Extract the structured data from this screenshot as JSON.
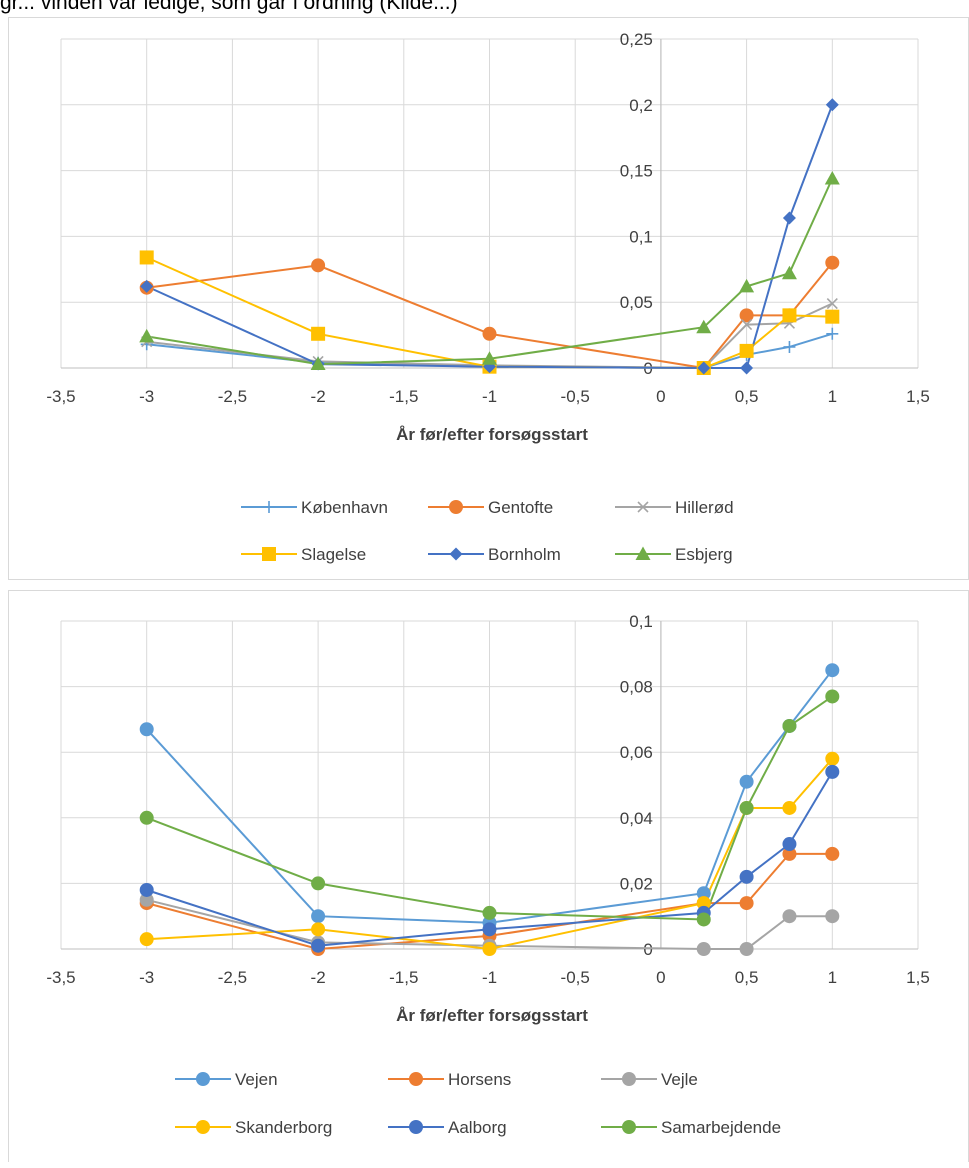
{
  "header": {
    "text": "gr... vinden var ledige, som går i ordning (Kilde...)"
  },
  "chart_data": [
    {
      "type": "line",
      "xlabel": "År før/efter forsøgsstart",
      "xlim": [
        -3.5,
        1.5
      ],
      "ylim": [
        0,
        0.25
      ],
      "xticks": [
        -3.5,
        -3,
        -2.5,
        -2,
        -1.5,
        -1,
        -0.5,
        0,
        0.5,
        1,
        1.5
      ],
      "xtick_labels": [
        "-3,5",
        "-3",
        "-2,5",
        "-2",
        "-1,5",
        "-1",
        "-0,5",
        "0",
        "0,5",
        "1",
        "1,5"
      ],
      "yticks": [
        0,
        0.05,
        0.1,
        0.15,
        0.2,
        0.25
      ],
      "ytick_labels": [
        "0",
        "0,05",
        "0,1",
        "0,15",
        "0,2",
        "0,25"
      ],
      "grid": true,
      "legend_position": "bottom",
      "series": [
        {
          "name": "København",
          "color": "#5b9bd5",
          "marker": "plus",
          "x": [
            -3,
            -2,
            -1,
            0.25,
            0.5,
            0.75,
            1
          ],
          "y": [
            0.018,
            0.004,
            0.001,
            0,
            0.01,
            0.016,
            0.026
          ]
        },
        {
          "name": "Gentofte",
          "color": "#ed7d31",
          "marker": "circle",
          "x": [
            -3,
            -2,
            -1,
            0.25,
            0.5,
            0.75,
            1
          ],
          "y": [
            0.061,
            0.078,
            0.026,
            0,
            0.04,
            0.04,
            0.08
          ]
        },
        {
          "name": "Hillerød",
          "color": "#a5a5a5",
          "marker": "x",
          "x": [
            -3,
            -2,
            -1,
            0.25,
            0.5,
            0.75,
            1
          ],
          "y": [
            0.02,
            0.005,
            0.002,
            0,
            0.033,
            0.034,
            0.049
          ]
        },
        {
          "name": "Slagelse",
          "color": "#ffc000",
          "marker": "square",
          "x": [
            -3,
            -2,
            -1,
            0.25,
            0.5,
            0.75,
            1
          ],
          "y": [
            0.084,
            0.026,
            0.001,
            0,
            0.013,
            0.04,
            0.039
          ]
        },
        {
          "name": "Bornholm",
          "color": "#4472c4",
          "marker": "diamond",
          "x": [
            -3,
            -2,
            -1,
            0.25,
            0.5,
            0.75,
            1
          ],
          "y": [
            0.062,
            0.003,
            0.001,
            0,
            0,
            0.114,
            0.2
          ]
        },
        {
          "name": "Esbjerg",
          "color": "#70ad47",
          "marker": "triangle",
          "x": [
            -3,
            -2,
            -1,
            0.25,
            0.5,
            0.75,
            1
          ],
          "y": [
            0.024,
            0.003,
            0.007,
            0.031,
            0.062,
            0.072,
            0.144
          ]
        }
      ]
    },
    {
      "type": "line",
      "xlabel": "År før/efter forsøgsstart",
      "xlim": [
        -3.5,
        1.5
      ],
      "ylim": [
        0,
        0.1
      ],
      "xticks": [
        -3.5,
        -3,
        -2.5,
        -2,
        -1.5,
        -1,
        -0.5,
        0,
        0.5,
        1,
        1.5
      ],
      "xtick_labels": [
        "-3,5",
        "-3",
        "-2,5",
        "-2",
        "-1,5",
        "-1",
        "-0,5",
        "0",
        "0,5",
        "1",
        "1,5"
      ],
      "yticks": [
        0,
        0.02,
        0.04,
        0.06,
        0.08,
        0.1
      ],
      "ytick_labels": [
        "0",
        "0,02",
        "0,04",
        "0,06",
        "0,08",
        "0,1"
      ],
      "grid": true,
      "legend_position": "bottom",
      "series": [
        {
          "name": "Vejen",
          "color": "#5b9bd5",
          "marker": "circle",
          "x": [
            -3,
            -2,
            -1,
            0.25,
            0.5,
            0.75,
            1
          ],
          "y": [
            0.067,
            0.01,
            0.008,
            0.017,
            0.051,
            0.068,
            0.085
          ]
        },
        {
          "name": "Horsens",
          "color": "#ed7d31",
          "marker": "circle",
          "x": [
            -3,
            -2,
            -1,
            0.25,
            0.5,
            0.75,
            1
          ],
          "y": [
            0.014,
            0,
            0.004,
            0.014,
            0.014,
            0.029,
            0.029
          ]
        },
        {
          "name": "Vejle",
          "color": "#a5a5a5",
          "marker": "circle",
          "x": [
            -3,
            -2,
            -1,
            0.25,
            0.5,
            0.75,
            1
          ],
          "y": [
            0.015,
            0.002,
            0.001,
            0,
            0,
            0.01,
            0.01
          ]
        },
        {
          "name": "Skanderborg",
          "color": "#ffc000",
          "marker": "circle",
          "x": [
            -3,
            -2,
            -1,
            0.25,
            0.5,
            0.75,
            1
          ],
          "y": [
            0.003,
            0.006,
            0,
            0.014,
            0.043,
            0.043,
            0.058
          ]
        },
        {
          "name": "Aalborg",
          "color": "#4472c4",
          "marker": "circle",
          "x": [
            -3,
            -2,
            -1,
            0.25,
            0.5,
            0.75,
            1
          ],
          "y": [
            0.018,
            0.001,
            0.006,
            0.011,
            0.022,
            0.032,
            0.054
          ]
        },
        {
          "name": "Samarbejdende",
          "color": "#70ad47",
          "marker": "circle",
          "x": [
            -3,
            -2,
            -1,
            0.25,
            0.5,
            0.75,
            1
          ],
          "y": [
            0.04,
            0.02,
            0.011,
            0.009,
            0.043,
            0.068,
            0.077
          ]
        }
      ]
    }
  ]
}
